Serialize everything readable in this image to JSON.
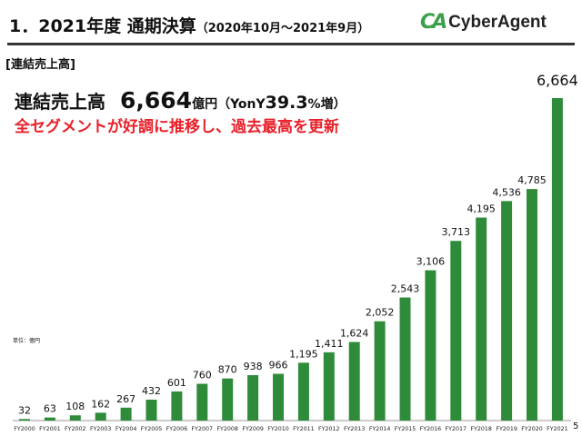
{
  "header": {
    "title": "1．2021年度 通期決算",
    "period": "（2020年10月～2021年9月）",
    "logo_text": "CyberAgent",
    "logo_mark": "CA"
  },
  "section_label": "[連結売上高]",
  "headline": {
    "label": "連結売上高",
    "value": "6,664",
    "unit": "億円",
    "yoy_open": "（YonY",
    "yoy_value": "39.3",
    "yoy_pct": "%増）"
  },
  "tagline": "全セグメントが好調に推移し、過去最高を更新",
  "unit_note": "単位：億円",
  "page_number": "5",
  "colors": {
    "bar": "#2e8b3a",
    "tagline": "#e8202a",
    "logo": "#3aa14a"
  },
  "chart_data": {
    "type": "bar",
    "categories": [
      "FY2000",
      "FY2001",
      "FY2002",
      "FY2003",
      "FY2004",
      "FY2005",
      "FY2006",
      "FY2007",
      "FY2008",
      "FY2009",
      "FY2010",
      "FY2011",
      "FY2012",
      "FY2013",
      "FY2014",
      "FY2015",
      "FY2016",
      "FY2017",
      "FY2018",
      "FY2019",
      "FY2020",
      "FY2021"
    ],
    "values": [
      32,
      63,
      108,
      162,
      267,
      432,
      601,
      760,
      870,
      938,
      966,
      1195,
      1411,
      1624,
      2052,
      2543,
      3106,
      3713,
      4195,
      4536,
      4785,
      6664
    ],
    "labels": [
      "32",
      "63",
      "108",
      "162",
      "267",
      "432",
      "601",
      "760",
      "870",
      "938",
      "966",
      "1,195",
      "1,411",
      "1,624",
      "2,052",
      "2,543",
      "3,106",
      "3,713",
      "4,195",
      "4,536",
      "4,785",
      "6,664"
    ],
    "ylim": [
      0,
      6664
    ],
    "grid": false
  }
}
